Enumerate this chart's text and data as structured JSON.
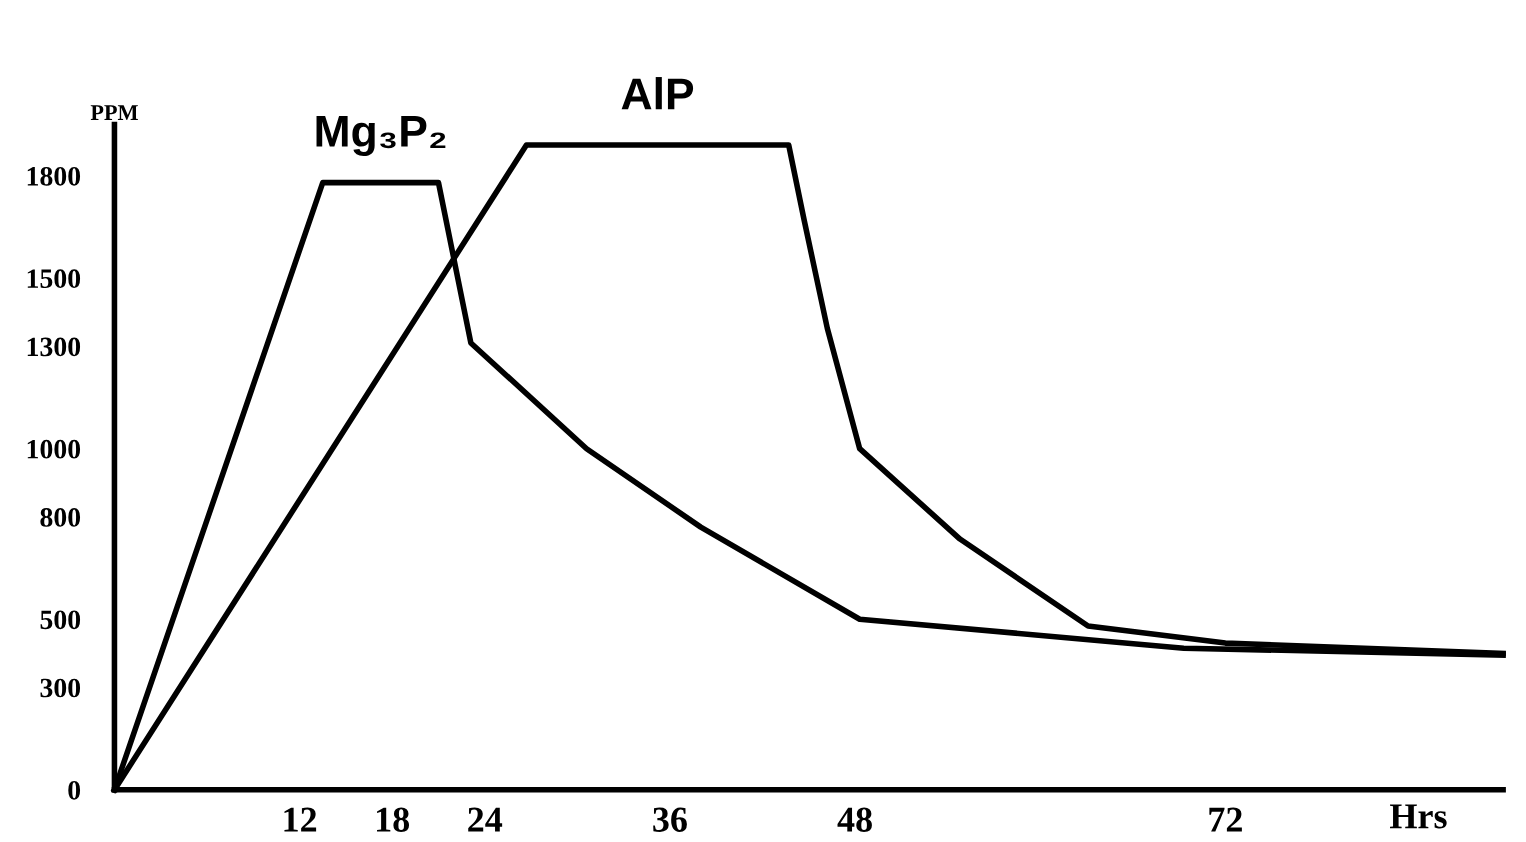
{
  "chart_data": {
    "type": "line",
    "xlabel": "Hrs",
    "ylabel": "PPM",
    "xlim": [
      0,
      90
    ],
    "ylim": [
      0,
      1950
    ],
    "xticks": [
      12,
      18,
      24,
      36,
      48,
      72
    ],
    "yticks": [
      0,
      300,
      500,
      800,
      1000,
      1300,
      1500,
      1800
    ],
    "grid": false,
    "legend": false,
    "marker": "none",
    "line_style": "solid",
    "series": [
      {
        "name": "Mg₃P₂",
        "color": "#000000",
        "x": [
          0,
          13.5,
          21,
          23.1,
          30.6,
          38,
          48.3,
          69.3,
          90
        ],
        "values": [
          0,
          1780,
          1780,
          1310,
          1000,
          770,
          500,
          415,
          395
        ]
      },
      {
        "name": "AlP",
        "color": "#000000",
        "x": [
          0,
          26.7,
          43.7,
          44.7,
          46.2,
          48.3,
          54.8,
          63.1,
          72,
          90
        ],
        "values": [
          0,
          1890,
          1890,
          1670,
          1353,
          1000,
          735,
          480,
          430,
          400
        ]
      }
    ]
  }
}
